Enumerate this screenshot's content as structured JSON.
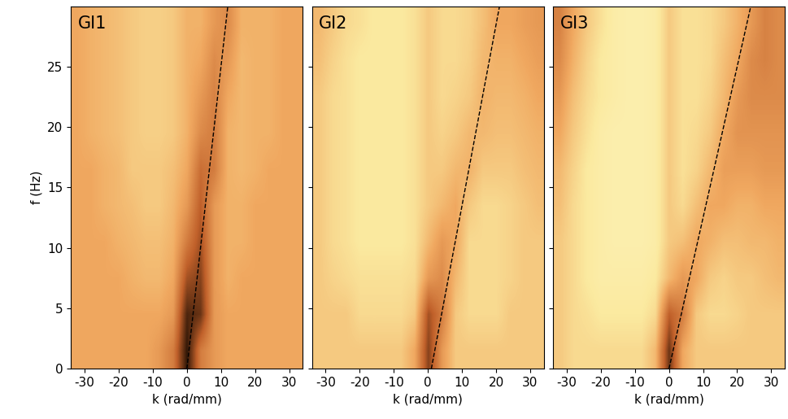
{
  "chart_data": [
    {
      "type": "heatmap",
      "title": "GI1",
      "x_label": "k (rad/mm)",
      "y_label": "f (Hz)",
      "xlim": [
        -34,
        34
      ],
      "ylim": [
        0,
        30
      ],
      "xticks": [
        -30,
        -20,
        -10,
        0,
        10,
        20,
        30
      ],
      "yticks": [
        0,
        5,
        10,
        15,
        20,
        25
      ],
      "value_range": [
        0,
        1
      ],
      "cells": [
        [
          0.45,
          0.45,
          0.45,
          0.45,
          0.45,
          0.45,
          0.5,
          0.6,
          0.95,
          0.6,
          0.5,
          0.45,
          0.45,
          0.45,
          0.45,
          0.45,
          0.45
        ],
        [
          0.45,
          0.45,
          0.45,
          0.45,
          0.45,
          0.45,
          0.45,
          0.5,
          0.9,
          0.85,
          0.5,
          0.45,
          0.45,
          0.45,
          0.45,
          0.45,
          0.45
        ],
        [
          0.45,
          0.45,
          0.45,
          0.45,
          0.42,
          0.4,
          0.4,
          0.45,
          0.75,
          0.8,
          0.5,
          0.42,
          0.45,
          0.45,
          0.45,
          0.45,
          0.45
        ],
        [
          0.45,
          0.45,
          0.45,
          0.42,
          0.4,
          0.38,
          0.38,
          0.42,
          0.6,
          0.75,
          0.5,
          0.42,
          0.42,
          0.45,
          0.45,
          0.45,
          0.45
        ],
        [
          0.45,
          0.45,
          0.42,
          0.4,
          0.38,
          0.35,
          0.35,
          0.4,
          0.5,
          0.7,
          0.5,
          0.42,
          0.42,
          0.45,
          0.45,
          0.45,
          0.45
        ],
        [
          0.45,
          0.45,
          0.42,
          0.4,
          0.35,
          0.35,
          0.35,
          0.38,
          0.45,
          0.65,
          0.6,
          0.42,
          0.4,
          0.42,
          0.45,
          0.45,
          0.45
        ],
        [
          0.45,
          0.42,
          0.4,
          0.38,
          0.35,
          0.33,
          0.33,
          0.35,
          0.42,
          0.55,
          0.6,
          0.42,
          0.4,
          0.42,
          0.42,
          0.45,
          0.45
        ],
        [
          0.45,
          0.42,
          0.4,
          0.38,
          0.35,
          0.33,
          0.33,
          0.35,
          0.42,
          0.5,
          0.58,
          0.45,
          0.4,
          0.42,
          0.42,
          0.45,
          0.45
        ],
        [
          0.45,
          0.42,
          0.4,
          0.38,
          0.35,
          0.33,
          0.33,
          0.35,
          0.42,
          0.45,
          0.55,
          0.5,
          0.4,
          0.42,
          0.42,
          0.45,
          0.45
        ],
        [
          0.45,
          0.42,
          0.4,
          0.38,
          0.35,
          0.33,
          0.33,
          0.35,
          0.42,
          0.42,
          0.5,
          0.55,
          0.42,
          0.42,
          0.42,
          0.45,
          0.45
        ]
      ],
      "series": [
        {
          "type": "line",
          "line_style": "dashed",
          "color": "#000000",
          "x": [
            0,
            12
          ],
          "values": [
            0,
            30
          ]
        }
      ]
    },
    {
      "type": "heatmap",
      "title": "GI2",
      "x_label": "k (rad/mm)",
      "tick_labels": "x",
      "xlim": [
        -34,
        34
      ],
      "ylim": [
        0,
        30
      ],
      "xticks": [
        -30,
        -20,
        -10,
        0,
        10,
        20,
        30
      ],
      "yticks": [
        0,
        5,
        10,
        15,
        20,
        25
      ],
      "value_range": [
        0,
        1
      ],
      "cells": [
        [
          0.35,
          0.35,
          0.35,
          0.35,
          0.35,
          0.35,
          0.35,
          0.45,
          0.8,
          0.5,
          0.35,
          0.35,
          0.35,
          0.35,
          0.35,
          0.35,
          0.35
        ],
        [
          0.35,
          0.35,
          0.35,
          0.3,
          0.3,
          0.3,
          0.3,
          0.35,
          0.75,
          0.6,
          0.35,
          0.3,
          0.3,
          0.3,
          0.35,
          0.35,
          0.35
        ],
        [
          0.35,
          0.32,
          0.3,
          0.28,
          0.28,
          0.28,
          0.28,
          0.3,
          0.5,
          0.55,
          0.4,
          0.3,
          0.3,
          0.3,
          0.32,
          0.35,
          0.35
        ],
        [
          0.35,
          0.3,
          0.28,
          0.25,
          0.25,
          0.25,
          0.25,
          0.28,
          0.4,
          0.5,
          0.45,
          0.3,
          0.3,
          0.3,
          0.32,
          0.35,
          0.35
        ],
        [
          0.35,
          0.3,
          0.28,
          0.25,
          0.25,
          0.25,
          0.25,
          0.28,
          0.35,
          0.4,
          0.45,
          0.35,
          0.3,
          0.3,
          0.32,
          0.35,
          0.38
        ],
        [
          0.35,
          0.3,
          0.28,
          0.25,
          0.25,
          0.25,
          0.25,
          0.28,
          0.35,
          0.35,
          0.4,
          0.42,
          0.35,
          0.35,
          0.35,
          0.38,
          0.4
        ],
        [
          0.35,
          0.3,
          0.28,
          0.25,
          0.25,
          0.25,
          0.25,
          0.28,
          0.35,
          0.32,
          0.35,
          0.4,
          0.4,
          0.38,
          0.38,
          0.4,
          0.42
        ],
        [
          0.35,
          0.3,
          0.28,
          0.25,
          0.25,
          0.25,
          0.25,
          0.28,
          0.35,
          0.3,
          0.32,
          0.35,
          0.42,
          0.4,
          0.4,
          0.42,
          0.45
        ],
        [
          0.38,
          0.32,
          0.28,
          0.25,
          0.25,
          0.25,
          0.25,
          0.28,
          0.35,
          0.3,
          0.3,
          0.33,
          0.4,
          0.42,
          0.42,
          0.45,
          0.48
        ],
        [
          0.4,
          0.35,
          0.3,
          0.28,
          0.25,
          0.25,
          0.25,
          0.28,
          0.35,
          0.3,
          0.3,
          0.32,
          0.38,
          0.45,
          0.45,
          0.48,
          0.5
        ]
      ],
      "series": [
        {
          "type": "line",
          "line_style": "dashed",
          "color": "#000000",
          "x": [
            1,
            21
          ],
          "values": [
            0,
            30
          ]
        }
      ]
    },
    {
      "type": "heatmap",
      "title": "GI3",
      "x_label": "k (rad/mm)",
      "tick_labels": "x",
      "xlim": [
        -34,
        34
      ],
      "ylim": [
        0,
        30
      ],
      "xticks": [
        -30,
        -20,
        -10,
        0,
        10,
        20,
        30
      ],
      "yticks": [
        0,
        5,
        10,
        15,
        20,
        25
      ],
      "value_range": [
        0,
        1
      ],
      "cells": [
        [
          0.35,
          0.3,
          0.3,
          0.3,
          0.3,
          0.3,
          0.3,
          0.4,
          0.85,
          0.45,
          0.35,
          0.35,
          0.35,
          0.35,
          0.35,
          0.35,
          0.35
        ],
        [
          0.35,
          0.3,
          0.28,
          0.25,
          0.25,
          0.25,
          0.25,
          0.3,
          0.7,
          0.6,
          0.35,
          0.3,
          0.3,
          0.32,
          0.35,
          0.35,
          0.35
        ],
        [
          0.35,
          0.3,
          0.25,
          0.22,
          0.22,
          0.22,
          0.22,
          0.25,
          0.4,
          0.5,
          0.45,
          0.35,
          0.32,
          0.35,
          0.35,
          0.38,
          0.4
        ],
        [
          0.35,
          0.3,
          0.25,
          0.22,
          0.2,
          0.2,
          0.2,
          0.22,
          0.35,
          0.38,
          0.45,
          0.42,
          0.38,
          0.38,
          0.4,
          0.4,
          0.42
        ],
        [
          0.38,
          0.3,
          0.25,
          0.22,
          0.2,
          0.2,
          0.2,
          0.22,
          0.35,
          0.3,
          0.38,
          0.45,
          0.45,
          0.42,
          0.42,
          0.45,
          0.45
        ],
        [
          0.4,
          0.32,
          0.25,
          0.22,
          0.2,
          0.2,
          0.2,
          0.22,
          0.35,
          0.28,
          0.32,
          0.4,
          0.48,
          0.48,
          0.48,
          0.5,
          0.5
        ],
        [
          0.45,
          0.35,
          0.28,
          0.22,
          0.2,
          0.2,
          0.2,
          0.22,
          0.35,
          0.28,
          0.3,
          0.35,
          0.45,
          0.52,
          0.52,
          0.52,
          0.52
        ],
        [
          0.5,
          0.38,
          0.3,
          0.25,
          0.22,
          0.2,
          0.2,
          0.22,
          0.35,
          0.28,
          0.28,
          0.32,
          0.4,
          0.5,
          0.55,
          0.55,
          0.55
        ],
        [
          0.55,
          0.42,
          0.32,
          0.25,
          0.22,
          0.2,
          0.2,
          0.22,
          0.35,
          0.28,
          0.28,
          0.3,
          0.38,
          0.45,
          0.55,
          0.58,
          0.55
        ],
        [
          0.58,
          0.45,
          0.35,
          0.28,
          0.22,
          0.2,
          0.2,
          0.22,
          0.35,
          0.28,
          0.28,
          0.3,
          0.35,
          0.42,
          0.5,
          0.58,
          0.55
        ]
      ],
      "series": [
        {
          "type": "line",
          "line_style": "dashed",
          "color": "#000000",
          "x": [
            0,
            24
          ],
          "values": [
            0,
            30
          ]
        }
      ]
    }
  ]
}
